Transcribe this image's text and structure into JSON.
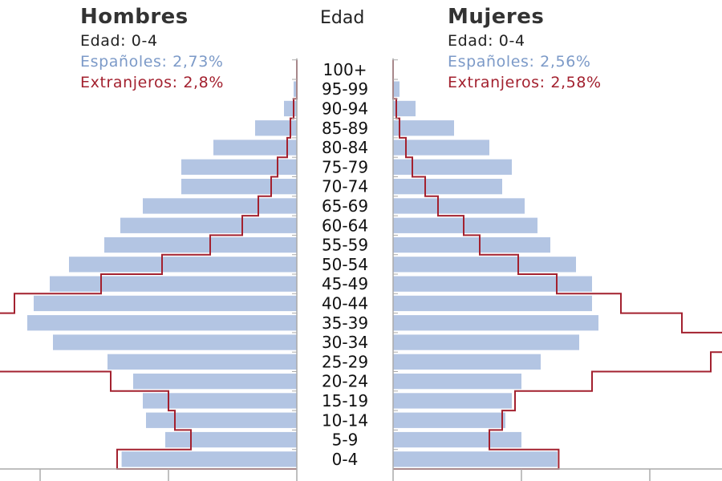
{
  "center_header": "Edad",
  "men": {
    "title": "Hombres",
    "age_label": "Edad: 0-4",
    "spanish_label": "Españoles: 2,73%",
    "foreign_label": "Extranjeros: 2,8%"
  },
  "women": {
    "title": "Mujeres",
    "age_label": "Edad: 0-4",
    "spanish_label": "Españoles: 2,56%",
    "foreign_label": "Extranjeros: 2,58%"
  },
  "colors": {
    "spanish_bar": "#b3c5e3",
    "foreign_line": "#a3212f",
    "axis": "#aaaaaa"
  },
  "chart_data": {
    "type": "bar",
    "orientation": "horizontal-population-pyramid",
    "categories": [
      "0-4",
      "5-9",
      "10-14",
      "15-19",
      "20-24",
      "25-29",
      "30-34",
      "35-39",
      "40-44",
      "45-49",
      "50-54",
      "55-59",
      "60-64",
      "65-69",
      "70-74",
      "75-79",
      "80-84",
      "85-89",
      "90-94",
      "95-99",
      "100+"
    ],
    "x_tick_step": 2,
    "series": [
      {
        "name": "Españoles",
        "side": "men",
        "render": "bar",
        "values": [
          2.73,
          2.05,
          2.35,
          2.4,
          2.55,
          2.95,
          3.8,
          4.2,
          4.1,
          3.85,
          3.55,
          3.0,
          2.75,
          2.4,
          1.8,
          1.8,
          1.3,
          0.65,
          0.2,
          0.05,
          0.0
        ]
      },
      {
        "name": "Españoles",
        "side": "women",
        "render": "bar",
        "values": [
          2.56,
          2.0,
          1.75,
          1.85,
          2.0,
          2.3,
          2.9,
          3.2,
          3.1,
          3.1,
          2.85,
          2.45,
          2.25,
          2.05,
          1.7,
          1.85,
          1.5,
          0.95,
          0.35,
          0.1,
          0.0
        ]
      },
      {
        "name": "Extranjeros",
        "side": "men",
        "render": "step-line",
        "values": [
          2.8,
          1.65,
          1.9,
          2.0,
          2.9,
          4.7,
          6.2,
          5.7,
          4.4,
          3.05,
          2.1,
          1.35,
          0.85,
          0.6,
          0.4,
          0.3,
          0.15,
          0.1,
          0.05,
          0.0,
          0.0
        ]
      },
      {
        "name": "Extranjeros",
        "side": "women",
        "render": "step-line",
        "values": [
          2.58,
          1.5,
          1.7,
          1.9,
          3.1,
          4.95,
          5.55,
          4.5,
          3.55,
          2.55,
          1.95,
          1.35,
          1.1,
          0.7,
          0.5,
          0.3,
          0.2,
          0.1,
          0.05,
          0.0,
          0.0
        ]
      }
    ]
  }
}
